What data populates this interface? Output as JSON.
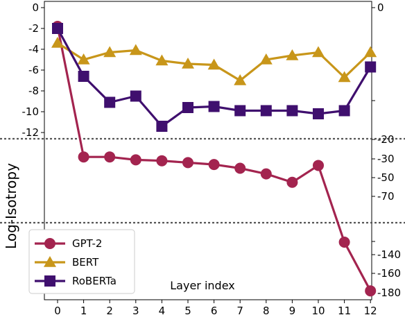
{
  "chart_data": {
    "type": "line",
    "title": "",
    "xlabel": "Layer index",
    "ylabel": "Log-Isotropy",
    "x": [
      0,
      1,
      2,
      3,
      4,
      5,
      6,
      7,
      8,
      9,
      10,
      11,
      12
    ],
    "x_ticks": [
      "0",
      "1",
      "2",
      "3",
      "4",
      "5",
      "6",
      "7",
      "8",
      "9",
      "10",
      "11",
      "12"
    ],
    "broken_y_axis": true,
    "y_segments": [
      {
        "range": [
          -13,
          0
        ],
        "side": "left",
        "ticks": [
          "0",
          "-2",
          "-4",
          "-6",
          "-8",
          "-10",
          "-12"
        ]
      },
      {
        "range": [
          -90,
          -15
        ],
        "side": "right",
        "ticks": [
          "-20",
          "-30",
          "-50",
          "-70"
        ]
      },
      {
        "range": [
          -190,
          -120
        ],
        "side": "right",
        "ticks": [
          "-140",
          "-160",
          "-180"
        ]
      }
    ],
    "right_top_tick": "0",
    "series": [
      {
        "name": "GPT-2",
        "color": "#a3244f",
        "marker": "circle",
        "values": [
          -1.8,
          -29,
          -29,
          -31,
          -32,
          -34,
          -36,
          -40,
          -46,
          -55,
          -37,
          -132,
          -178
        ]
      },
      {
        "name": "BERT",
        "color": "#c8961a",
        "marker": "triangle",
        "values": [
          -3.4,
          -5.0,
          -4.3,
          -4.1,
          -5.1,
          -5.4,
          -5.5,
          -7.0,
          -5.0,
          -4.6,
          -4.3,
          -6.7,
          -4.3
        ]
      },
      {
        "name": "RoBERTa",
        "color": "#3f0f6e",
        "marker": "square",
        "values": [
          -2.0,
          -6.6,
          -9.1,
          -8.5,
          -11.4,
          -9.6,
          -9.5,
          -9.9,
          -9.9,
          -9.9,
          -10.2,
          -9.9,
          -5.7
        ]
      }
    ],
    "legend": {
      "position": "bottom-left"
    },
    "grid": false
  }
}
